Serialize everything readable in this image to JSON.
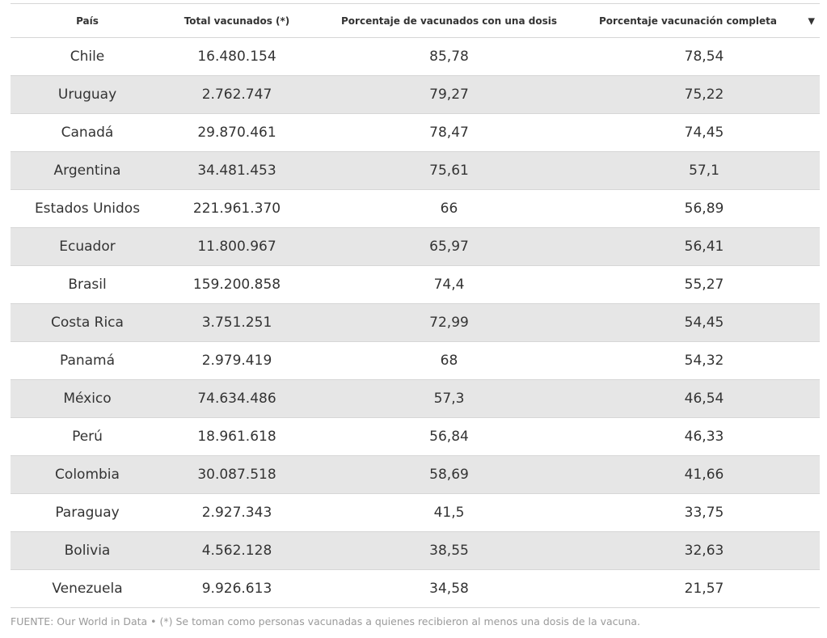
{
  "table": {
    "headers": [
      "País",
      "Total vacunados (*)",
      "Porcentaje de vacunados con una dosis",
      "Porcentaje vacunación completa"
    ],
    "sort_indicator": "▼",
    "rows": [
      [
        "Chile",
        "16.480.154",
        "85,78",
        "78,54"
      ],
      [
        "Uruguay",
        "2.762.747",
        "79,27",
        "75,22"
      ],
      [
        "Canadá",
        "29.870.461",
        "78,47",
        "74,45"
      ],
      [
        "Argentina",
        "34.481.453",
        "75,61",
        "57,1"
      ],
      [
        "Estados Unidos",
        "221.961.370",
        "66",
        "56,89"
      ],
      [
        "Ecuador",
        "11.800.967",
        "65,97",
        "56,41"
      ],
      [
        "Brasil",
        "159.200.858",
        "74,4",
        "55,27"
      ],
      [
        "Costa Rica",
        "3.751.251",
        "72,99",
        "54,45"
      ],
      [
        "Panamá",
        "2.979.419",
        "68",
        "54,32"
      ],
      [
        "México",
        "74.634.486",
        "57,3",
        "46,54"
      ],
      [
        "Perú",
        "18.961.618",
        "56,84",
        "46,33"
      ],
      [
        "Colombia",
        "30.087.518",
        "58,69",
        "41,66"
      ],
      [
        "Paraguay",
        "2.927.343",
        "41,5",
        "33,75"
      ],
      [
        "Bolivia",
        "4.562.128",
        "38,55",
        "32,63"
      ],
      [
        "Venezuela",
        "9.926.613",
        "34,58",
        "21,57"
      ]
    ]
  },
  "footnote": "FUENTE: Our World in Data • (*) Se toman como personas vacunadas a quienes recibieron al menos una dosis de la vacuna.",
  "colors": {
    "row_stripe": "#e6e6e6",
    "border": "#d6d6d6",
    "text": "#333333",
    "footnote": "#9a9a9a"
  }
}
